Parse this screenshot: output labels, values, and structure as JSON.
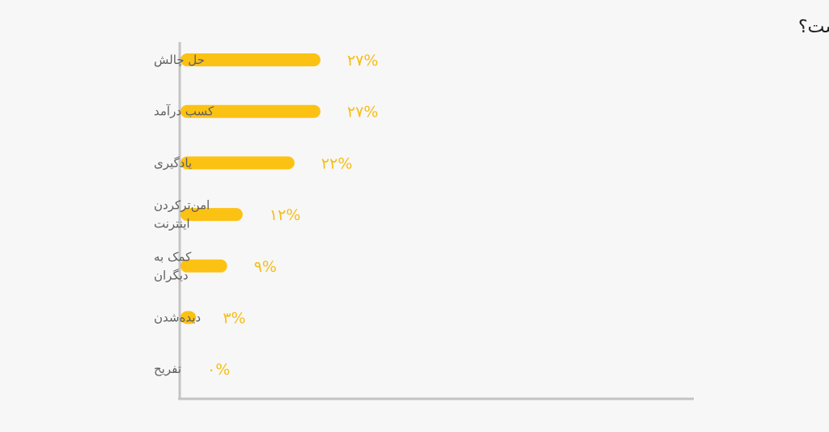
{
  "chart_data": {
    "type": "bar",
    "orientation": "horizontal",
    "title": "انگیزه‌ات از هک‌کردن چیست؟",
    "categories": [
      [
        "حل چالش"
      ],
      [
        "کسب درآمد"
      ],
      [
        "یادگیری"
      ],
      [
        "امن‌ترکردن",
        "اینترنت"
      ],
      [
        "کمک به",
        "دیگران"
      ],
      [
        "دیده‌شدن"
      ],
      [
        "تفریح"
      ]
    ],
    "values": [
      27,
      27,
      22,
      12,
      9,
      3,
      0
    ],
    "value_labels": [
      "۲۷%",
      "۲۷%",
      "۲۲%",
      "۱۲%",
      "۹%",
      "۳%",
      "۰%"
    ],
    "xlim": [
      0,
      100
    ],
    "grid": false,
    "legend": "none",
    "colors": {
      "bar": "#fcc213",
      "value_label": "#f6bd14",
      "axis": "#c4c4c4",
      "category_label": "#5f5f5f",
      "title": "#1e1e1e"
    }
  }
}
